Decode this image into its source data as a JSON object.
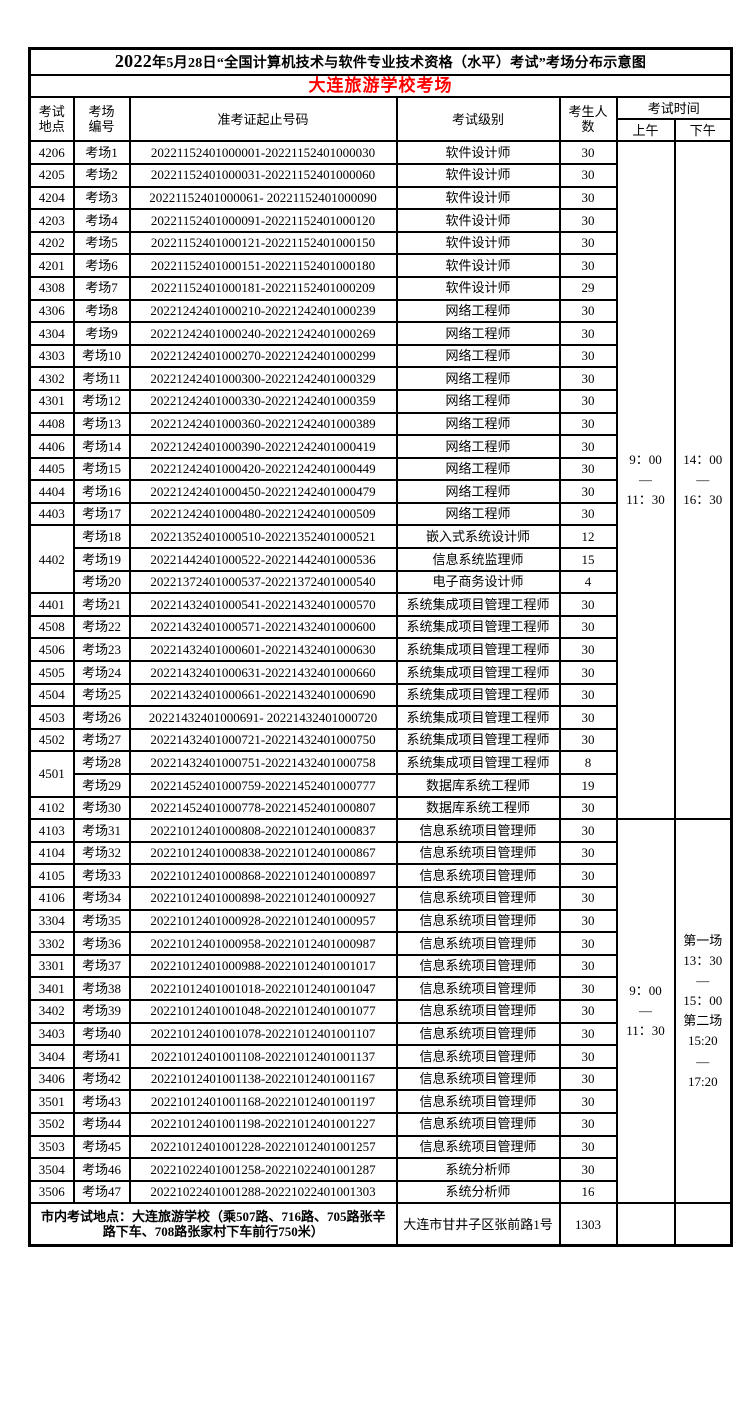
{
  "title": {
    "year": "2022",
    "rest": "年5月28日“全国计算机技术与软件专业技术资格（水平）考试”考场分布示意图"
  },
  "subtitle": "大连旅游学校考场",
  "colors": {
    "subtitle": "#FF0000",
    "border": "#000000",
    "background": "#FFFFFF"
  },
  "headers": {
    "location": "考试\n地点",
    "room": "考场\n编号",
    "ticket": "准考证起止号码",
    "level": "考试级别",
    "count": "考生人\n数",
    "time": "考试时间",
    "am": "上午",
    "pm": "下午"
  },
  "rows": [
    {
      "loc": "4206",
      "room": "考场1",
      "range": "20221152401000001-20221152401000030",
      "level": "软件设计师",
      "count": "30"
    },
    {
      "loc": "4205",
      "room": "考场2",
      "range": "20221152401000031-20221152401000060",
      "level": "软件设计师",
      "count": "30"
    },
    {
      "loc": "4204",
      "room": "考场3",
      "range": "20221152401000061- 20221152401000090",
      "level": "软件设计师",
      "count": "30"
    },
    {
      "loc": "4203",
      "room": "考场4",
      "range": "20221152401000091-20221152401000120",
      "level": "软件设计师",
      "count": "30"
    },
    {
      "loc": "4202",
      "room": "考场5",
      "range": "20221152401000121-20221152401000150",
      "level": "软件设计师",
      "count": "30"
    },
    {
      "loc": "4201",
      "room": "考场6",
      "range": "20221152401000151-20221152401000180",
      "level": "软件设计师",
      "count": "30"
    },
    {
      "loc": "4308",
      "room": "考场7",
      "range": "20221152401000181-20221152401000209",
      "level": "软件设计师",
      "count": "29"
    },
    {
      "loc": "4306",
      "room": "考场8",
      "range": "20221242401000210-20221242401000239",
      "level": "网络工程师",
      "count": "30"
    },
    {
      "loc": "4304",
      "room": "考场9",
      "range": "20221242401000240-20221242401000269",
      "level": "网络工程师",
      "count": "30"
    },
    {
      "loc": "4303",
      "room": "考场10",
      "range": "20221242401000270-20221242401000299",
      "level": "网络工程师",
      "count": "30"
    },
    {
      "loc": "4302",
      "room": "考场11",
      "range": "20221242401000300-20221242401000329",
      "level": "网络工程师",
      "count": "30"
    },
    {
      "loc": "4301",
      "room": "考场12",
      "range": "20221242401000330-20221242401000359",
      "level": "网络工程师",
      "count": "30"
    },
    {
      "loc": "4408",
      "room": "考场13",
      "range": "20221242401000360-20221242401000389",
      "level": "网络工程师",
      "count": "30"
    },
    {
      "loc": "4406",
      "room": "考场14",
      "range": "20221242401000390-20221242401000419",
      "level": "网络工程师",
      "count": "30"
    },
    {
      "loc": "4405",
      "room": "考场15",
      "range": "20221242401000420-20221242401000449",
      "level": "网络工程师",
      "count": "30"
    },
    {
      "loc": "4404",
      "room": "考场16",
      "range": "20221242401000450-20221242401000479",
      "level": "网络工程师",
      "count": "30"
    },
    {
      "loc": "4403",
      "room": "考场17",
      "range": "20221242401000480-20221242401000509",
      "level": "网络工程师",
      "count": "30"
    },
    {
      "loc": "4402",
      "locSpan": 3,
      "room": "考场18",
      "range": "20221352401000510-20221352401000521",
      "level": "嵌入式系统设计师",
      "count": "12"
    },
    {
      "loc": null,
      "room": "考场19",
      "range": "20221442401000522-20221442401000536",
      "level": "信息系统监理师",
      "count": "15"
    },
    {
      "loc": null,
      "room": "考场20",
      "range": "20221372401000537-20221372401000540",
      "level": "电子商务设计师",
      "count": "4"
    },
    {
      "loc": "4401",
      "room": "考场21",
      "range": "20221432401000541-20221432401000570",
      "level": "系统集成项目管理工程师",
      "count": "30"
    },
    {
      "loc": "4508",
      "room": "考场22",
      "range": "20221432401000571-20221432401000600",
      "level": "系统集成项目管理工程师",
      "count": "30"
    },
    {
      "loc": "4506",
      "room": "考场23",
      "range": "20221432401000601-20221432401000630",
      "level": "系统集成项目管理工程师",
      "count": "30"
    },
    {
      "loc": "4505",
      "room": "考场24",
      "range": "20221432401000631-20221432401000660",
      "level": "系统集成项目管理工程师",
      "count": "30"
    },
    {
      "loc": "4504",
      "room": "考场25",
      "range": "20221432401000661-20221432401000690",
      "level": "系统集成项目管理工程师",
      "count": "30"
    },
    {
      "loc": "4503",
      "room": "考场26",
      "range": "20221432401000691- 20221432401000720",
      "level": "系统集成项目管理工程师",
      "count": "30"
    },
    {
      "loc": "4502",
      "room": "考场27",
      "range": "20221432401000721-20221432401000750",
      "level": "系统集成项目管理工程师",
      "count": "30"
    },
    {
      "loc": "4501",
      "locSpan": 2,
      "room": "考场28",
      "range": "20221432401000751-20221432401000758",
      "level": "系统集成项目管理工程师",
      "count": "8"
    },
    {
      "loc": null,
      "room": "考场29",
      "range": "20221452401000759-20221452401000777",
      "level": "数据库系统工程师",
      "count": "19"
    },
    {
      "loc": "4102",
      "room": "考场30",
      "range": "20221452401000778-20221452401000807",
      "level": "数据库系统工程师",
      "count": "30"
    },
    {
      "loc": "4103",
      "room": "考场31",
      "range": "20221012401000808-20221012401000837",
      "level": "信息系统项目管理师",
      "count": "30"
    },
    {
      "loc": "4104",
      "room": "考场32",
      "range": "20221012401000838-20221012401000867",
      "level": "信息系统项目管理师",
      "count": "30"
    },
    {
      "loc": "4105",
      "room": "考场33",
      "range": "20221012401000868-20221012401000897",
      "level": "信息系统项目管理师",
      "count": "30"
    },
    {
      "loc": "4106",
      "room": "考场34",
      "range": "20221012401000898-20221012401000927",
      "level": "信息系统项目管理师",
      "count": "30"
    },
    {
      "loc": "3304",
      "room": "考场35",
      "range": "20221012401000928-20221012401000957",
      "level": "信息系统项目管理师",
      "count": "30"
    },
    {
      "loc": "3302",
      "room": "考场36",
      "range": "20221012401000958-20221012401000987",
      "level": "信息系统项目管理师",
      "count": "30"
    },
    {
      "loc": "3301",
      "room": "考场37",
      "range": "20221012401000988-20221012401001017",
      "level": "信息系统项目管理师",
      "count": "30"
    },
    {
      "loc": "3401",
      "room": "考场38",
      "range": "20221012401001018-20221012401001047",
      "level": "信息系统项目管理师",
      "count": "30"
    },
    {
      "loc": "3402",
      "room": "考场39",
      "range": "20221012401001048-20221012401001077",
      "level": "信息系统项目管理师",
      "count": "30"
    },
    {
      "loc": "3403",
      "room": "考场40",
      "range": "20221012401001078-20221012401001107",
      "level": "信息系统项目管理师",
      "count": "30"
    },
    {
      "loc": "3404",
      "room": "考场41",
      "range": "20221012401001108-20221012401001137",
      "level": "信息系统项目管理师",
      "count": "30"
    },
    {
      "loc": "3406",
      "room": "考场42",
      "range": "20221012401001138-20221012401001167",
      "level": "信息系统项目管理师",
      "count": "30"
    },
    {
      "loc": "3501",
      "room": "考场43",
      "range": "20221012401001168-20221012401001197",
      "level": "信息系统项目管理师",
      "count": "30"
    },
    {
      "loc": "3502",
      "room": "考场44",
      "range": "20221012401001198-20221012401001227",
      "level": "信息系统项目管理师",
      "count": "30"
    },
    {
      "loc": "3503",
      "room": "考场45",
      "range": "20221012401001228-20221012401001257",
      "level": "信息系统项目管理师",
      "count": "30"
    },
    {
      "loc": "3504",
      "room": "考场46",
      "range": "20221022401001258-20221022401001287",
      "level": "系统分析师",
      "count": "30"
    },
    {
      "loc": "3506",
      "room": "考场47",
      "range": "20221022401001288-20221022401001303",
      "level": "系统分析师",
      "count": "16"
    }
  ],
  "time_blocks": [
    {
      "start": 0,
      "span": 30,
      "am": [
        "9：00",
        "—",
        "11：30"
      ],
      "pm": [
        "14：00",
        "—",
        "16：30"
      ]
    },
    {
      "start": 30,
      "span": 17,
      "am": [
        "9：00",
        "—",
        "11：30"
      ],
      "pm": [
        "第一场",
        "13：30",
        "—",
        "15：00",
        "第二场",
        "15:20",
        "—",
        "17:20"
      ]
    }
  ],
  "footer": {
    "left": "市内考试地点：大连旅游学校（乘507路、716路、705路张辛路下车、708路张家村下车前行750米）",
    "address": "大连市甘井子区张前路1号",
    "total": "1303"
  }
}
